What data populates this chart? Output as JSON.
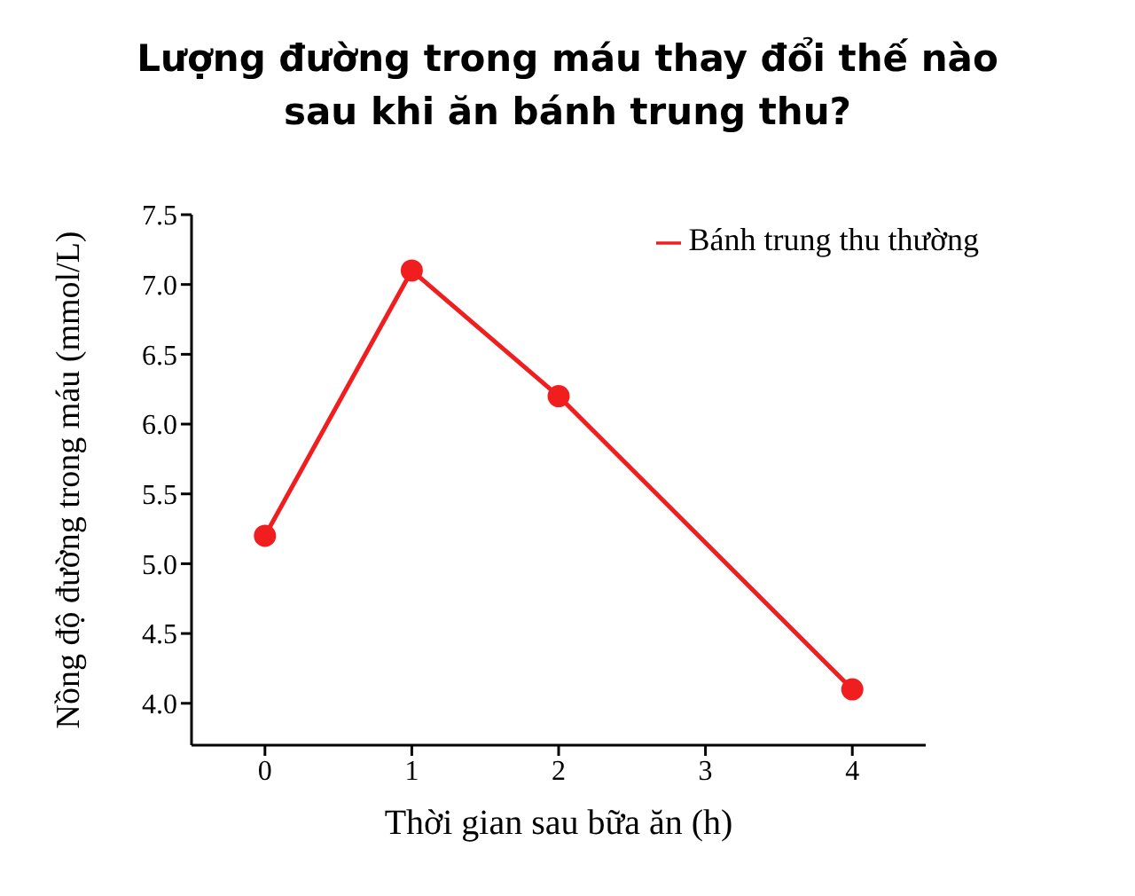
{
  "chart_data": {
    "type": "line",
    "title": "Lượng đường trong máu thay đổi thế nào sau khi ăn bánh trung thu?",
    "xlabel": "Thời gian sau bữa ăn (h)",
    "ylabel": "Nồng độ đường trong máu (mmol/L)",
    "x": [
      0,
      1,
      2,
      4
    ],
    "series": [
      {
        "name": "Bánh trung thu thường",
        "color": "#f01e1e",
        "values": [
          5.2,
          7.1,
          6.2,
          4.1
        ]
      }
    ],
    "xlim": [
      -0.5,
      4.5
    ],
    "xticks": [
      0,
      1,
      2,
      3,
      4
    ],
    "ylim": [
      3.7,
      7.5
    ],
    "yticks": [
      {
        "value": 4,
        "label": "4.0"
      },
      {
        "value": 4.5,
        "label": "4.5"
      },
      {
        "value": 5,
        "label": "5.0"
      },
      {
        "value": 5.5,
        "label": "5.5"
      },
      {
        "value": 6,
        "label": "6.0"
      },
      {
        "value": 6.5,
        "label": "6.5"
      },
      {
        "value": 7,
        "label": "7.0"
      },
      {
        "value": 7.5,
        "label": "7.5"
      }
    ],
    "legend": "top right",
    "marker": "circle",
    "line_style": "solid",
    "grid": false
  }
}
